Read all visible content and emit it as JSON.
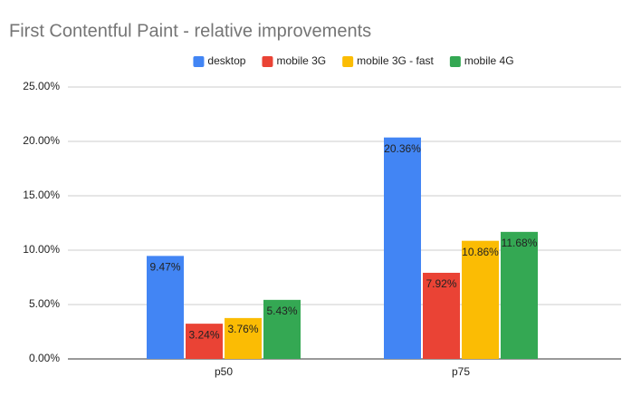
{
  "chart_data": {
    "type": "bar",
    "title": "First Contentful Paint - relative improvements",
    "categories": [
      "p50",
      "p75"
    ],
    "series": [
      {
        "name": "desktop",
        "color": "#4285f4",
        "values": [
          9.47,
          20.36
        ],
        "value_labels": [
          "9.47%",
          "20.36%"
        ]
      },
      {
        "name": "mobile 3G",
        "color": "#ea4335",
        "values": [
          3.24,
          7.92
        ],
        "value_labels": [
          "3.24%",
          "7.92%"
        ]
      },
      {
        "name": "mobile 3G - fast",
        "color": "#fbbc04",
        "values": [
          3.76,
          10.86
        ],
        "value_labels": [
          "3.76%",
          "10.86%"
        ]
      },
      {
        "name": "mobile 4G",
        "color": "#34a853",
        "values": [
          5.43,
          11.68
        ],
        "value_labels": [
          "5.43%",
          "11.68%"
        ]
      }
    ],
    "ylim": [
      0,
      25
    ],
    "yticks": [
      {
        "value": 0,
        "label": "0.00%"
      },
      {
        "value": 5,
        "label": "5.00%"
      },
      {
        "value": 10,
        "label": "10.00%"
      },
      {
        "value": 15,
        "label": "15.00%"
      },
      {
        "value": 20,
        "label": "20.00%"
      },
      {
        "value": 25,
        "label": "25.00%"
      }
    ],
    "grid": true,
    "legend": "top"
  }
}
